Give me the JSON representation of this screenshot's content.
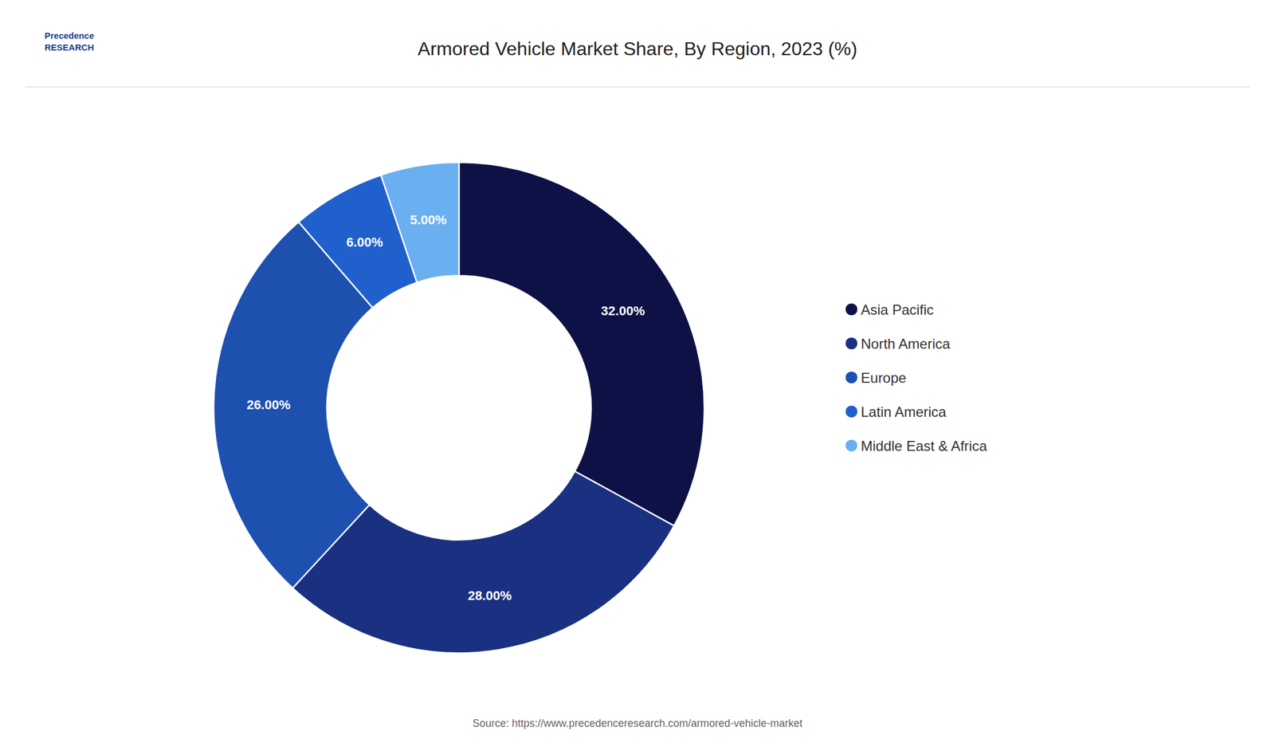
{
  "chart_data": {
    "type": "pie",
    "title": "Armored Vehicle Market Share, By Region, 2023 (%)",
    "categories": [
      "Asia Pacific",
      "North America",
      "Europe",
      "Latin America",
      "Middle East & Africa"
    ],
    "values": [
      32.0,
      28.0,
      26.0,
      6.0,
      5.0
    ],
    "value_labels": [
      "32.00%",
      "28.00%",
      "26.00%",
      "6.00%",
      "5.00%"
    ],
    "colors": [
      "#0d1145",
      "#1a3080",
      "#1e50b0",
      "#2060cc",
      "#6ab0f0"
    ],
    "data_labels": true,
    "legend": "right",
    "annotations": [
      "Precedence\nRESEARCH",
      "Source: https://www.precedenceresearch.com/armored-vehicle-market"
    ]
  }
}
